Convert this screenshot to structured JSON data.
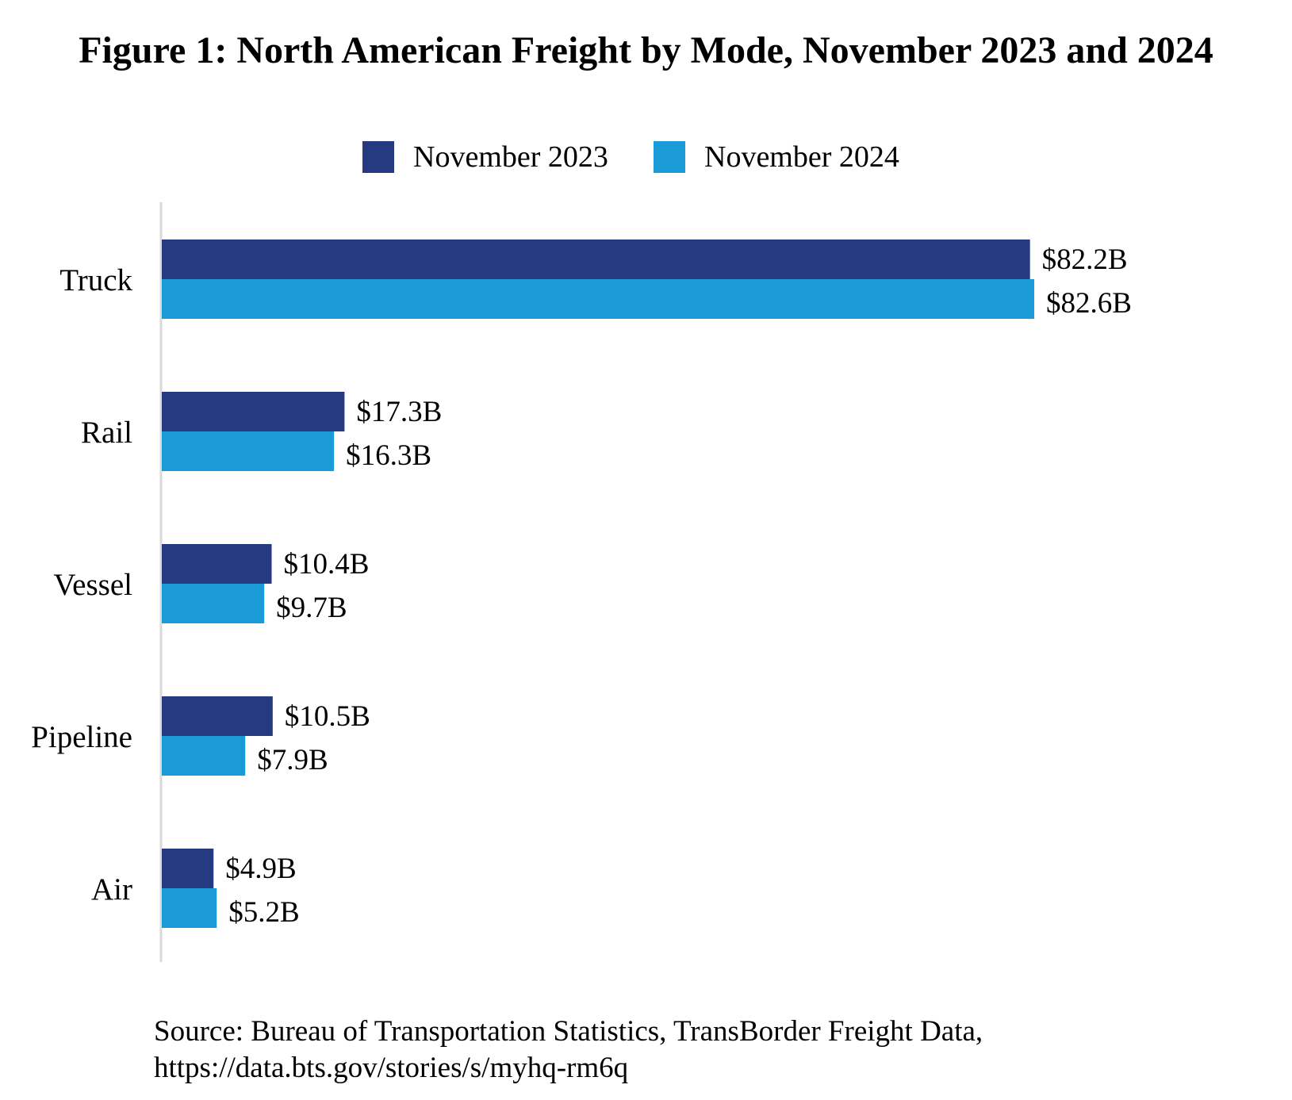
{
  "chart_data": {
    "type": "bar",
    "orientation": "horizontal",
    "title": "Figure 1: North American Freight by Mode, November 2023 and 2024",
    "categories": [
      "Truck",
      "Rail",
      "Vessel",
      "Pipeline",
      "Air"
    ],
    "series": [
      {
        "name": "November 2023",
        "color": "#253A80",
        "values": [
          82.2,
          17.3,
          10.4,
          10.5,
          4.9
        ],
        "labels": [
          "$82.2B",
          "$17.3B",
          "$10.4B",
          "$10.5B",
          "$4.9B"
        ]
      },
      {
        "name": "November 2024",
        "color": "#1A9AD7",
        "values": [
          82.6,
          16.3,
          9.7,
          7.9,
          5.2
        ],
        "labels": [
          "$82.6B",
          "$16.3B",
          "$9.7B",
          "$7.9B",
          "$5.2B"
        ]
      }
    ],
    "unit": "Billions of US dollars",
    "xlabel": "",
    "ylabel": "",
    "xlim": [
      0,
      90
    ],
    "grid": false,
    "legend_position": "top-center",
    "axis_color": "#D9D9D9"
  },
  "source": {
    "line1": "Source: Bureau of Transportation Statistics, TransBorder Freight Data,",
    "line2": "https://data.bts.gov/stories/s/myhq-rm6q"
  }
}
